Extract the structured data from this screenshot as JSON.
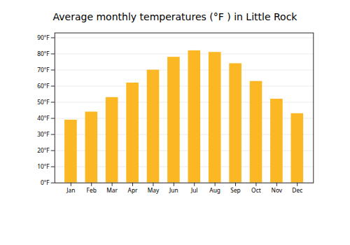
{
  "chart_data": {
    "type": "bar",
    "title": "Average monthly temperatures (°F ) in Little Rock",
    "categories": [
      "Jan",
      "Feb",
      "Mar",
      "Apr",
      "May",
      "Jun",
      "Jul",
      "Aug",
      "Sep",
      "Oct",
      "Nov",
      "Dec"
    ],
    "values": [
      39,
      44,
      53,
      62,
      70,
      78,
      82,
      81,
      74,
      63,
      52,
      43
    ],
    "color": "#FBB824",
    "ylim": [
      0,
      93
    ],
    "yticks": [
      {
        "value": 0,
        "label": "0°F"
      },
      {
        "value": 10,
        "label": "10°F"
      },
      {
        "value": 20,
        "label": "20°F"
      },
      {
        "value": 30,
        "label": "30°F"
      },
      {
        "value": 40,
        "label": "40°F"
      },
      {
        "value": 50,
        "label": "50°F"
      },
      {
        "value": 60,
        "label": "60°F"
      },
      {
        "value": 70,
        "label": "70°F"
      },
      {
        "value": 80,
        "label": "80°F"
      },
      {
        "value": 90,
        "label": "90°F"
      }
    ],
    "grid": true
  }
}
